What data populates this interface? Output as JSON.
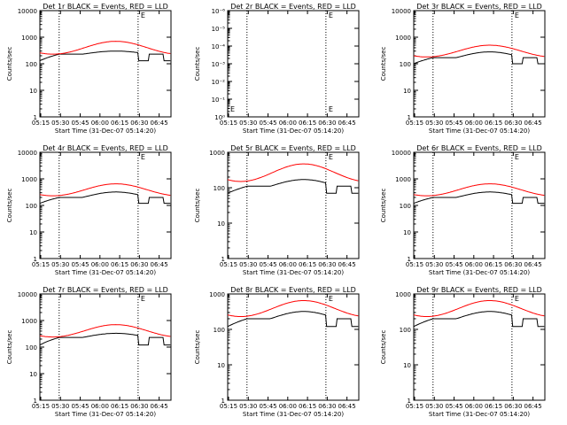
{
  "figure": {
    "xlabel": "Start Time (31-Dec-07 05:14:20)",
    "ylabel": "Counts/sec",
    "x_ticks": [
      "05:15",
      "05:30",
      "05:45",
      "06:00",
      "06:15",
      "06:30",
      "06:45"
    ],
    "dotted_lines_at": [
      "05:29",
      "06:29"
    ],
    "marker": "E",
    "colors": {
      "events": "#000000",
      "lld": "#ff0000",
      "axes": "#000000"
    }
  },
  "chart_data": [
    {
      "type": "line",
      "title": "Det 1r  BLACK = Events, RED = LLD",
      "yscale": "log",
      "ylim": [
        1,
        10000
      ],
      "y_ticks": [
        "1",
        "10",
        "100",
        "1000",
        "10000"
      ],
      "series": [
        {
          "name": "Events",
          "color": "#000000",
          "shape": "plateau",
          "min": 130,
          "level": 230,
          "peak": 300
        },
        {
          "name": "LLD",
          "color": "#ff0000",
          "shape": "smooth",
          "min": 230,
          "peak": 700
        }
      ]
    },
    {
      "type": "line",
      "title": "Det 2r  BLACK = Events, RED = LLD",
      "yscale": "log",
      "ylim": [
        1,
        1e-06
      ],
      "y_ticks": [
        "10⁰",
        "10⁻¹",
        "10⁻²",
        "10⁻³",
        "10⁻⁴",
        "10⁻⁵",
        "10⁻⁶"
      ],
      "series": []
    },
    {
      "type": "line",
      "title": "Det 3r  BLACK = Events, RED = LLD",
      "yscale": "log",
      "ylim": [
        1,
        10000
      ],
      "y_ticks": [
        "1",
        "10",
        "100",
        "1000",
        "10000"
      ],
      "series": [
        {
          "name": "Events",
          "color": "#000000",
          "shape": "plateau",
          "min": 100,
          "level": 170,
          "peak": 280
        },
        {
          "name": "LLD",
          "color": "#ff0000",
          "shape": "smooth",
          "min": 180,
          "peak": 500
        }
      ]
    },
    {
      "type": "line",
      "title": "Det 4r  BLACK = Events, RED = LLD",
      "yscale": "log",
      "ylim": [
        1,
        10000
      ],
      "y_ticks": [
        "1",
        "10",
        "100",
        "1000",
        "10000"
      ],
      "series": [
        {
          "name": "Events",
          "color": "#000000",
          "shape": "plateau",
          "min": 120,
          "level": 200,
          "peak": 320
        },
        {
          "name": "LLD",
          "color": "#ff0000",
          "shape": "smooth",
          "min": 230,
          "peak": 650
        }
      ]
    },
    {
      "type": "line",
      "title": "Det 5r  BLACK = Events, RED = LLD",
      "yscale": "log",
      "ylim": [
        1,
        1000
      ],
      "y_ticks": [
        "1",
        "10",
        "100",
        "1000"
      ],
      "series": [
        {
          "name": "Events",
          "color": "#000000",
          "shape": "plateau",
          "min": 70,
          "level": 110,
          "peak": 170
        },
        {
          "name": "LLD",
          "color": "#ff0000",
          "shape": "smooth",
          "min": 150,
          "peak": 470
        }
      ]
    },
    {
      "type": "line",
      "title": "Det 6r  BLACK = Events, RED = LLD",
      "yscale": "log",
      "ylim": [
        1,
        10000
      ],
      "y_ticks": [
        "1",
        "10",
        "100",
        "1000",
        "10000"
      ],
      "series": [
        {
          "name": "Events",
          "color": "#000000",
          "shape": "plateau",
          "min": 120,
          "level": 200,
          "peak": 320
        },
        {
          "name": "LLD",
          "color": "#ff0000",
          "shape": "smooth",
          "min": 230,
          "peak": 650
        }
      ]
    },
    {
      "type": "line",
      "title": "Det 7r  BLACK = Events, RED = LLD",
      "yscale": "log",
      "ylim": [
        1,
        10000
      ],
      "y_ticks": [
        "1",
        "10",
        "100",
        "1000",
        "10000"
      ],
      "series": [
        {
          "name": "Events",
          "color": "#000000",
          "shape": "plateau",
          "min": 120,
          "level": 230,
          "peak": 330
        },
        {
          "name": "LLD",
          "color": "#ff0000",
          "shape": "smooth",
          "min": 240,
          "peak": 700
        }
      ]
    },
    {
      "type": "line",
      "title": "Det 8r  BLACK = Events, RED = LLD",
      "yscale": "log",
      "ylim": [
        1,
        1000
      ],
      "y_ticks": [
        "1",
        "10",
        "100",
        "1000"
      ],
      "series": [
        {
          "name": "Events",
          "color": "#000000",
          "shape": "plateau",
          "min": 120,
          "level": 200,
          "peak": 320
        },
        {
          "name": "LLD",
          "color": "#ff0000",
          "shape": "smooth",
          "min": 230,
          "peak": 650
        }
      ]
    },
    {
      "type": "line",
      "title": "Det 9r  BLACK = Events, RED = LLD",
      "yscale": "log",
      "ylim": [
        1,
        1000
      ],
      "y_ticks": [
        "1",
        "10",
        "100",
        "1000"
      ],
      "series": [
        {
          "name": "Events",
          "color": "#000000",
          "shape": "plateau",
          "min": 120,
          "level": 200,
          "peak": 320
        },
        {
          "name": "LLD",
          "color": "#ff0000",
          "shape": "smooth",
          "min": 230,
          "peak": 650
        }
      ]
    }
  ]
}
